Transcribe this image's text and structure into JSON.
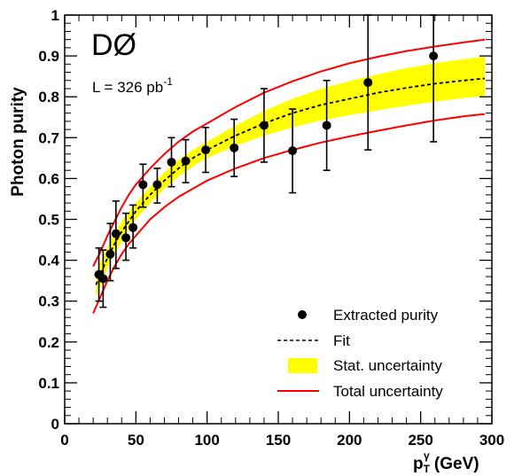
{
  "chart_data": {
    "type": "scatter",
    "experiment_label": "DØ",
    "luminosity_label": {
      "base": "L = 326 pb",
      "sup": "-1"
    },
    "xlabel": {
      "main": "p",
      "sub": "T",
      "sup": "γ",
      "unit": " (GeV)"
    },
    "ylabel": "Photon purity",
    "xlim": [
      0,
      300
    ],
    "ylim": [
      0,
      1
    ],
    "x_ticks": [
      0,
      50,
      100,
      150,
      200,
      250,
      300
    ],
    "y_ticks": [
      0,
      0.1,
      0.2,
      0.3,
      0.4,
      0.5,
      0.6,
      0.7,
      0.8,
      0.9,
      1
    ],
    "y_tick_labels": [
      "0",
      "0.1",
      "0.2",
      "0.3",
      "0.4",
      "0.5",
      "0.6",
      "0.7",
      "0.8",
      "0.9",
      "1"
    ],
    "grid": false,
    "legend_position": "bottom-right",
    "series": [
      {
        "name": "Extracted purity",
        "marker": "circle",
        "color": "#000000",
        "points": [
          {
            "x": 24,
            "y": 0.365,
            "lo": 0.3,
            "hi": 0.43
          },
          {
            "x": 27,
            "y": 0.355,
            "lo": 0.285,
            "hi": 0.425
          },
          {
            "x": 32,
            "y": 0.415,
            "lo": 0.35,
            "hi": 0.49
          },
          {
            "x": 36,
            "y": 0.465,
            "lo": 0.38,
            "hi": 0.545
          },
          {
            "x": 43,
            "y": 0.455,
            "lo": 0.4,
            "hi": 0.515
          },
          {
            "x": 48,
            "y": 0.48,
            "lo": 0.43,
            "hi": 0.535
          },
          {
            "x": 55,
            "y": 0.585,
            "lo": 0.53,
            "hi": 0.635
          },
          {
            "x": 65,
            "y": 0.585,
            "lo": 0.54,
            "hi": 0.625
          },
          {
            "x": 75,
            "y": 0.64,
            "lo": 0.58,
            "hi": 0.7
          },
          {
            "x": 85,
            "y": 0.643,
            "lo": 0.59,
            "hi": 0.695
          },
          {
            "x": 99,
            "y": 0.67,
            "lo": 0.615,
            "hi": 0.725
          },
          {
            "x": 119,
            "y": 0.675,
            "lo": 0.605,
            "hi": 0.745
          },
          {
            "x": 140,
            "y": 0.73,
            "lo": 0.64,
            "hi": 0.82
          },
          {
            "x": 160,
            "y": 0.668,
            "lo": 0.565,
            "hi": 0.77
          },
          {
            "x": 184,
            "y": 0.73,
            "lo": 0.62,
            "hi": 0.84
          },
          {
            "x": 213,
            "y": 0.835,
            "lo": 0.67,
            "hi": 1.0
          },
          {
            "x": 259,
            "y": 0.9,
            "lo": 0.69,
            "hi": 1.0
          }
        ]
      },
      {
        "name": "Fit",
        "style": "dashed",
        "color": "#000000",
        "x": [
          22,
          25,
          30,
          35,
          40,
          45,
          50,
          60,
          70,
          80,
          90,
          100,
          120,
          140,
          160,
          180,
          200,
          220,
          240,
          260,
          280,
          295
        ],
        "y": [
          0.34,
          0.365,
          0.405,
          0.44,
          0.47,
          0.495,
          0.52,
          0.56,
          0.595,
          0.625,
          0.65,
          0.67,
          0.705,
          0.735,
          0.76,
          0.78,
          0.795,
          0.81,
          0.822,
          0.832,
          0.84,
          0.845
        ]
      },
      {
        "name": "Stat. uncertainty",
        "style": "band",
        "color": "#ffff00",
        "x": [
          22,
          25,
          30,
          35,
          40,
          45,
          50,
          60,
          70,
          80,
          90,
          100,
          120,
          140,
          160,
          180,
          200,
          220,
          240,
          260,
          280,
          295
        ],
        "lower": [
          0.31,
          0.335,
          0.38,
          0.415,
          0.445,
          0.475,
          0.5,
          0.54,
          0.575,
          0.605,
          0.63,
          0.65,
          0.68,
          0.705,
          0.725,
          0.742,
          0.755,
          0.767,
          0.778,
          0.788,
          0.797,
          0.802
        ],
        "upper": [
          0.37,
          0.395,
          0.43,
          0.465,
          0.495,
          0.52,
          0.54,
          0.58,
          0.615,
          0.645,
          0.67,
          0.69,
          0.73,
          0.765,
          0.795,
          0.82,
          0.838,
          0.855,
          0.87,
          0.882,
          0.892,
          0.898
        ]
      },
      {
        "name": "Total uncertainty",
        "style": "lines",
        "color": "#ff0000",
        "x": [
          20,
          25,
          30,
          35,
          40,
          45,
          50,
          60,
          70,
          80,
          90,
          100,
          120,
          140,
          160,
          180,
          200,
          220,
          240,
          260,
          280,
          295
        ],
        "lower": [
          0.27,
          0.31,
          0.35,
          0.385,
          0.415,
          0.44,
          0.46,
          0.5,
          0.53,
          0.555,
          0.575,
          0.595,
          0.625,
          0.65,
          0.67,
          0.688,
          0.703,
          0.717,
          0.73,
          0.742,
          0.752,
          0.758
        ],
        "upper": [
          0.385,
          0.42,
          0.46,
          0.495,
          0.53,
          0.56,
          0.585,
          0.625,
          0.66,
          0.69,
          0.715,
          0.735,
          0.775,
          0.81,
          0.838,
          0.862,
          0.882,
          0.898,
          0.912,
          0.923,
          0.933,
          0.94
        ]
      }
    ]
  }
}
